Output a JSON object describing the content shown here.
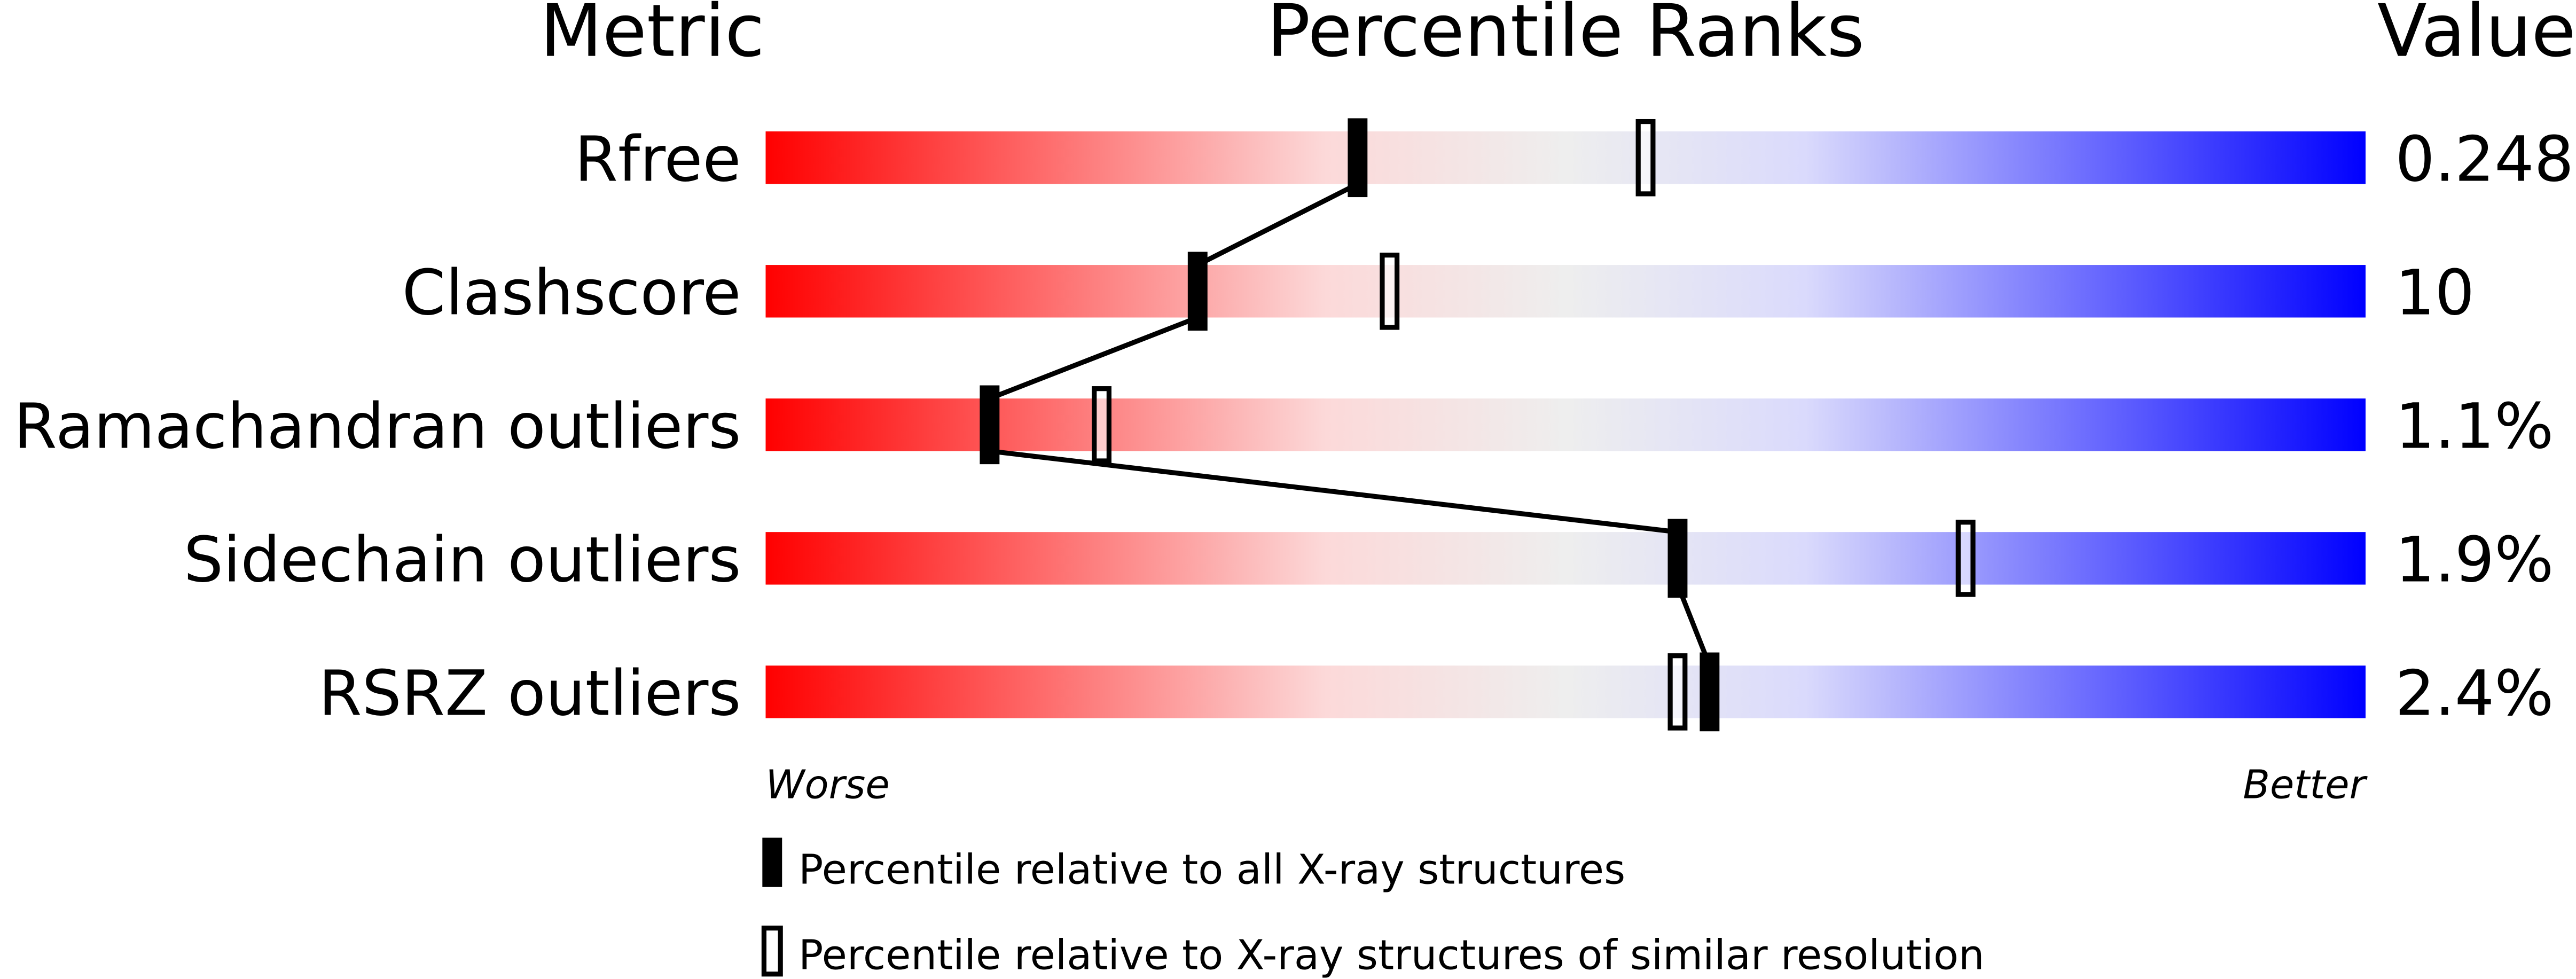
{
  "chart_data": {
    "type": "percentile-rank",
    "headers": {
      "metric": "Metric",
      "ranks": "Percentile Ranks",
      "value": "Value"
    },
    "xlim": [
      0,
      100
    ],
    "axis": {
      "left": "Worse",
      "right": "Better"
    },
    "rows": [
      {
        "metric": "Rfree",
        "value": "0.248",
        "percentile_all": 37,
        "percentile_similar": 55
      },
      {
        "metric": "Clashscore",
        "value": "10",
        "percentile_all": 27,
        "percentile_similar": 39
      },
      {
        "metric": "Ramachandran outliers",
        "value": "1.1%",
        "percentile_all": 14,
        "percentile_similar": 21
      },
      {
        "metric": "Sidechain outliers",
        "value": "1.9%",
        "percentile_all": 57,
        "percentile_similar": 75
      },
      {
        "metric": "RSRZ outliers",
        "value": "2.4%",
        "percentile_all": 59,
        "percentile_similar": 57
      }
    ],
    "legend": [
      {
        "marker": "filled",
        "label": "Percentile relative to all X-ray structures"
      },
      {
        "marker": "hollow",
        "label": "Percentile relative to X-ray structures of similar resolution"
      }
    ],
    "colors": {
      "worse": "#ff0000",
      "mid_red": "#fcd9d9",
      "middle": "#eeeeee",
      "mid_blue": "#dadafc",
      "better": "#0000ff",
      "marker": "#000000"
    }
  }
}
